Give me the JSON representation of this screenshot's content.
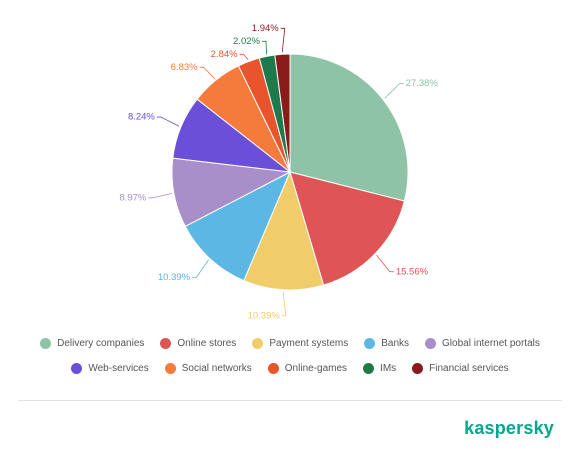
{
  "chart_data": {
    "type": "pie",
    "categories": [
      "Delivery companies",
      "Online stores",
      "Payment systems",
      "Banks",
      "Global internet portals",
      "Web-services",
      "Social networks",
      "Online-games",
      "IMs",
      "Financial services"
    ],
    "values": [
      27.38,
      15.56,
      10.39,
      10.39,
      8.97,
      8.24,
      6.83,
      2.84,
      2.02,
      1.94
    ],
    "value_labels": [
      "27.38%",
      "15.56%",
      "10.39%",
      "10.39%",
      "8.97%",
      "8.24%",
      "6.83%",
      "2.84%",
      "2.02%",
      "1.94%"
    ],
    "colors": [
      "#8ec3a7",
      "#df5454",
      "#f0cc6b",
      "#5db7e5",
      "#a98fca",
      "#6a50d8",
      "#f47b3b",
      "#e8542b",
      "#1f7a4b",
      "#8a1b1b"
    ],
    "legend": "bottom"
  },
  "brand": "kaspersky"
}
